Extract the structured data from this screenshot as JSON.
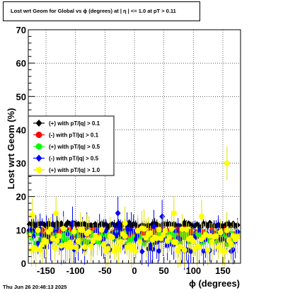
{
  "title": "Lost wrt Geom for Global vs ϕ (degrees) at |  η  | <= 1.0 at pT > 0.11",
  "timestamp": "Thu Jun 26 20:48:13 2025",
  "chart_data": {
    "type": "scatter",
    "xlabel": "ϕ (degrees)",
    "ylabel": "Lost wrt Geom (%)",
    "xlim": [
      -180,
      180
    ],
    "ylim": [
      0,
      70
    ],
    "x_ticks": [
      "-150",
      "-100",
      "-50",
      "0",
      "50",
      "100",
      "150"
    ],
    "y_ticks": [
      "0",
      "10",
      "20",
      "30",
      "40",
      "50",
      "60",
      "70"
    ],
    "grid": true,
    "legend_position": "left-middle",
    "series": [
      {
        "name": "(+) with pT/|q| > 0.1",
        "color": "#000000",
        "center": 11.5,
        "spread": 0.7,
        "outliers": []
      },
      {
        "name": "(-) with pT/|q| > 0.1",
        "color": "#ff0000",
        "center": 9.0,
        "spread": 1.2,
        "outliers": []
      },
      {
        "name": "(+) with pT/|q| > 0.5",
        "color": "#00ff00",
        "center": 7.5,
        "spread": 1.8,
        "outliers": []
      },
      {
        "name": "(-) with pT/|q| > 0.5",
        "color": "#0000ff",
        "center": 7.0,
        "spread": 3.5,
        "outliers": [
          [
            -28,
            15
          ],
          [
            47,
            14
          ],
          [
            33,
            11
          ],
          [
            -105,
            12
          ]
        ]
      },
      {
        "name": "(+) with pT/|q| > 1.0",
        "color": "#ffff00",
        "center": 7.0,
        "spread": 3.5,
        "outliers": [
          [
            157,
            30
          ],
          [
            -173,
            14.5
          ],
          [
            -133,
            15
          ],
          [
            67,
            15
          ],
          [
            114,
            14
          ],
          [
            -16,
            12
          ]
        ]
      }
    ]
  }
}
